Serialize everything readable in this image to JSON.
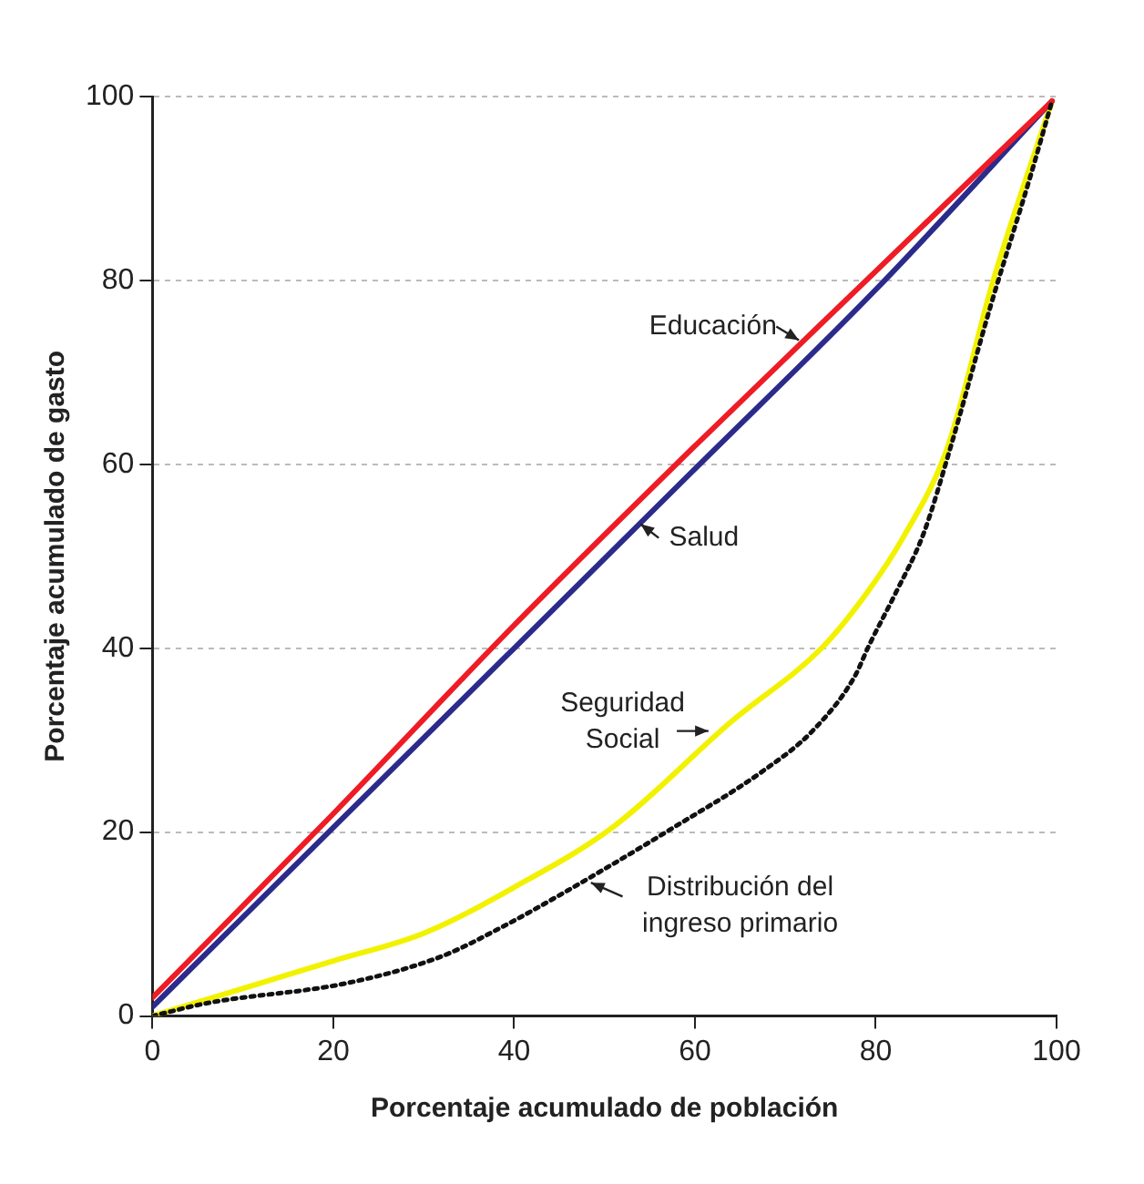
{
  "chart_data": {
    "type": "line",
    "xlabel": "Porcentaje acumulado de población",
    "ylabel": "Porcentaje acumulado de gasto",
    "xlim": [
      0,
      100
    ],
    "ylim": [
      0,
      100
    ],
    "xticks": [
      0,
      20,
      40,
      60,
      80,
      100
    ],
    "yticks": [
      0,
      20,
      40,
      60,
      80,
      100
    ],
    "grid": "y",
    "legend": false,
    "marker": "none",
    "series": [
      {
        "name": "Educación",
        "color": "#ee1c25",
        "line_style": "solid",
        "x": [
          0,
          20,
          40,
          60,
          80,
          99.5
        ],
        "values": [
          2,
          22,
          42.5,
          62,
          81,
          99.5
        ]
      },
      {
        "name": "Salud",
        "color": "#2b2b8c",
        "line_style": "solid",
        "x": [
          0,
          20,
          40,
          60,
          80,
          99.5
        ],
        "values": [
          1,
          20.5,
          40,
          59.5,
          79,
          99.5
        ]
      },
      {
        "name": "Seguridad Social",
        "color": "#f2f200",
        "line_style": "solid",
        "x": [
          0,
          10,
          20,
          30,
          40,
          51,
          64,
          74,
          79,
          83,
          88,
          93,
          99.5
        ],
        "values": [
          0,
          3,
          6,
          9,
          14,
          20.6,
          32,
          40,
          46,
          52,
          62,
          80,
          99.5
        ]
      },
      {
        "name": "Distribución del ingreso primario",
        "color": "#111111",
        "line_style": "dotted",
        "x": [
          0,
          6,
          21.6,
          32,
          38.7,
          46,
          57.8,
          67.6,
          73,
          77.6,
          79.3,
          82.2,
          85.3,
          88.2,
          92.7,
          97.1,
          99.5
        ],
        "values": [
          0,
          1.4,
          3.6,
          6.5,
          9.7,
          13.7,
          20.6,
          26.7,
          31,
          36.8,
          40.4,
          46,
          52.5,
          61.6,
          77.2,
          91.3,
          99.5
        ]
      }
    ]
  }
}
